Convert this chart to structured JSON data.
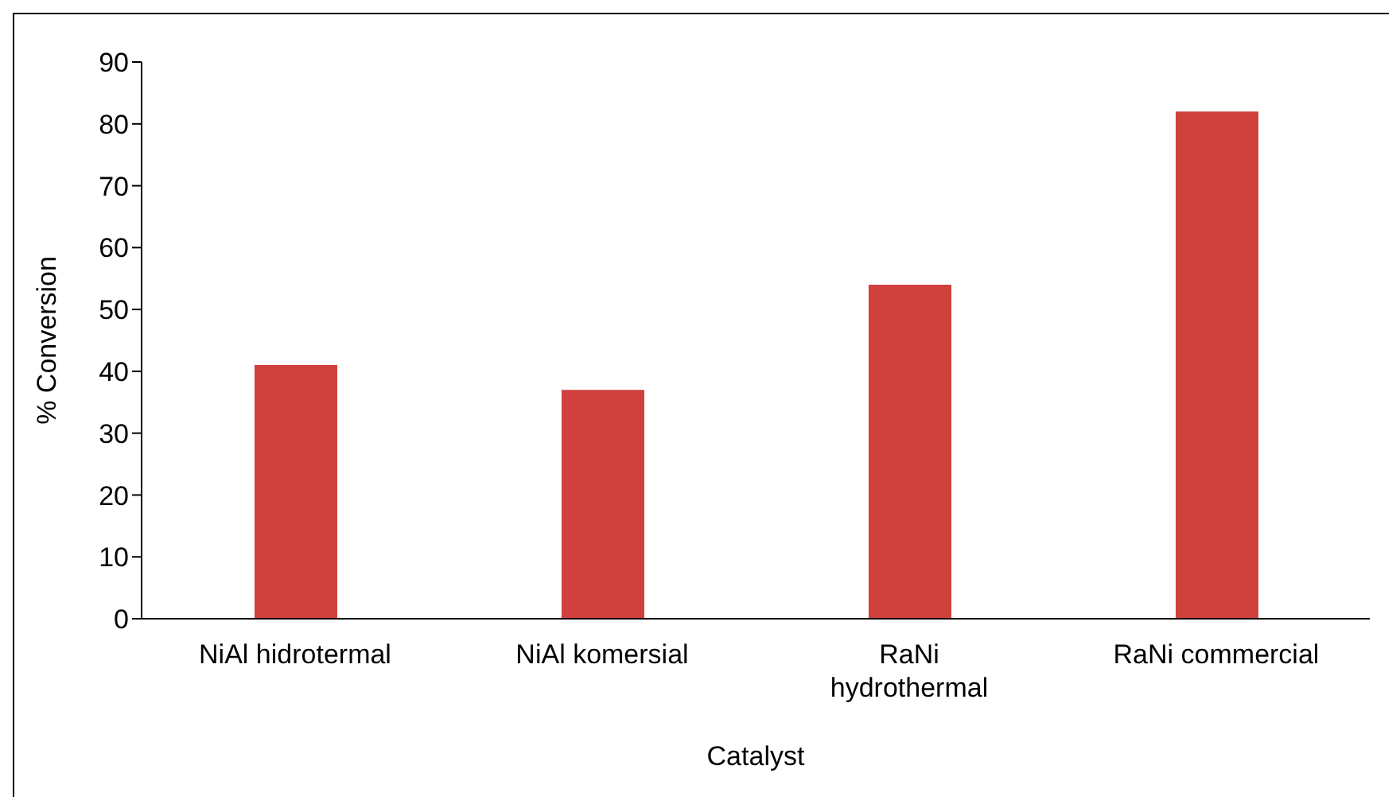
{
  "chart_data": {
    "type": "bar",
    "xlabel": "Catalyst",
    "ylabel": "% Conversion",
    "categories": [
      "NiAl hidrotermal",
      "NiAl komersial",
      "RaNi hydrothermal",
      "RaNi commercial"
    ],
    "values": [
      41,
      37,
      54,
      82
    ],
    "color": "#d0413e",
    "ylim": [
      0,
      90
    ],
    "yticks": [
      0,
      10,
      20,
      30,
      40,
      50,
      60,
      70,
      80,
      90
    ],
    "grid": false
  }
}
